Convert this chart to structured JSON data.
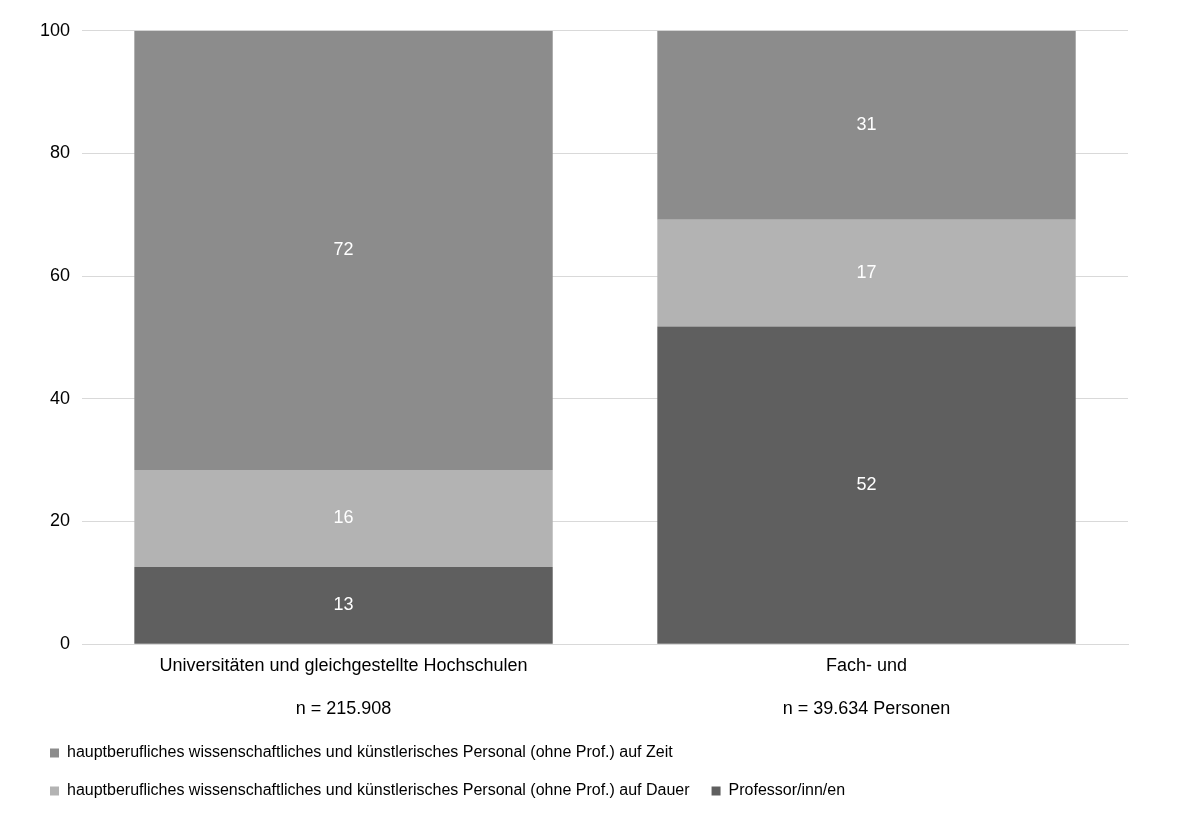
{
  "chart_data": {
    "type": "bar",
    "stacked": true,
    "categories": [
      "Universitäten und gleichgestellte Hochschulen\n\nn = 215.908",
      "Fach- und\n\nn = 39.634 Personen"
    ],
    "series": [
      {
        "name": "Professor/inn/en",
        "color": "#5f5f5f",
        "values": [
          12.6,
          51.8
        ],
        "value_labels": [
          "13",
          "52"
        ]
      },
      {
        "name": "hauptberufliches wissenschaftliches und künstlerisches Personal (ohne Prof.) auf Dauer",
        "color": "#b3b3b3",
        "values": [
          15.8,
          17.4
        ],
        "value_labels": [
          "16",
          "17"
        ]
      },
      {
        "name": "hauptberufliches wissenschaftliches und künstlerisches Personal (ohne Prof.) auf Zeit",
        "color": "#8c8c8c",
        "values": [
          71.6,
          30.8
        ],
        "value_labels": [
          "72",
          "31"
        ]
      }
    ],
    "ylim": [
      0,
      100
    ],
    "yticks": [
      0,
      20,
      40,
      60,
      80,
      100
    ],
    "grid": "y",
    "legend": "bottom"
  }
}
